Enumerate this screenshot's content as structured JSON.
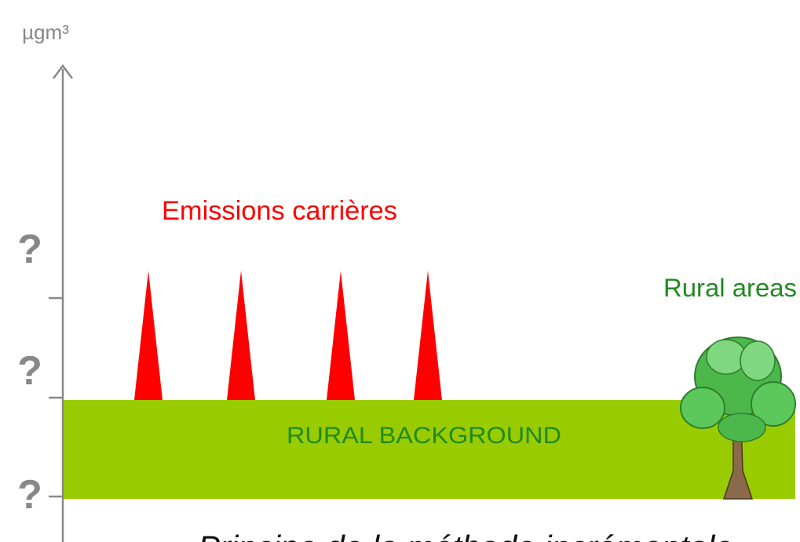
{
  "axis": {
    "unit": "µgm³",
    "levels": [
      "?",
      "?",
      "?"
    ]
  },
  "emissions": {
    "label": "Emissions carrières"
  },
  "rural_areas": {
    "label": "Rural areas"
  },
  "background": {
    "label": "RURAL BACKGROUND"
  },
  "caption": "Principe de la méthode incrémentale"
}
